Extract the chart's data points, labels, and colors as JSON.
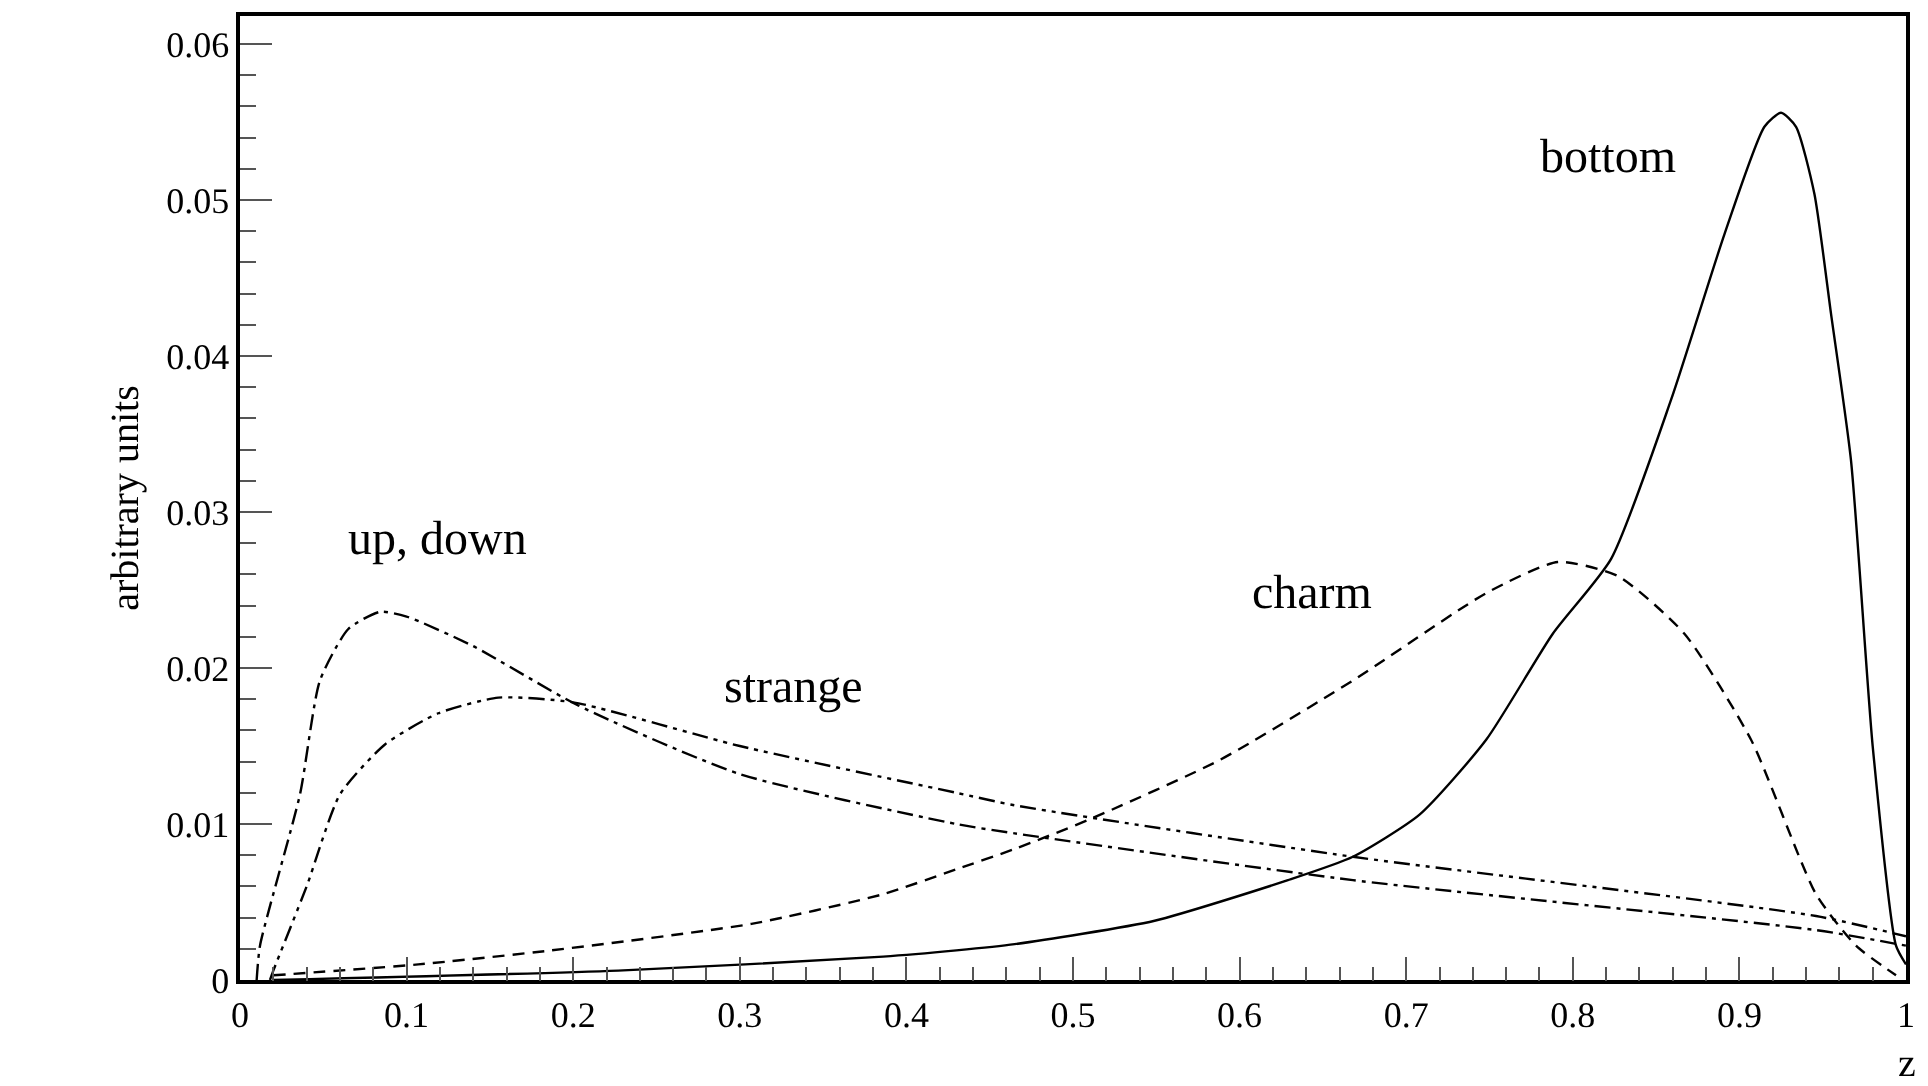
{
  "chart_data": {
    "type": "line",
    "xlabel": "z",
    "ylabel": "arbitrary units",
    "xlim": [
      0,
      1
    ],
    "ylim": [
      0,
      0.0618
    ],
    "xticks": [
      0,
      0.1,
      0.2,
      0.3,
      0.4,
      0.5,
      0.6,
      0.7,
      0.8,
      0.9,
      1
    ],
    "yticks": [
      0,
      0.01,
      0.02,
      0.03,
      0.04,
      0.05,
      0.06
    ],
    "marker": "none",
    "series": [
      {
        "name": "up, down",
        "color": "#000000",
        "line_style": "dashdot",
        "x": [
          0.01,
          0.012,
          0.036,
          0.048,
          0.065,
          0.084,
          0.1,
          0.14,
          0.203,
          0.3,
          0.43,
          0.465,
          0.668,
          0.946,
          1
        ],
        "values": [
          0,
          0.0022,
          0.0119,
          0.0192,
          0.0225,
          0.0236,
          0.0233,
          0.0214,
          0.0176,
          0.0132,
          0.01,
          0.0094,
          0.0064,
          0.0032,
          0.0022
        ]
      },
      {
        "name": "strange",
        "color": "#000000",
        "line_style": "dashdotdot",
        "x": [
          0.018,
          0.02,
          0.04,
          0.06,
          0.087,
          0.119,
          0.155,
          0.2,
          0.3,
          0.43,
          0.465,
          0.668,
          0.946,
          1
        ],
        "values": [
          0,
          0.0006,
          0.006,
          0.0119,
          0.0151,
          0.0171,
          0.0181,
          0.0178,
          0.015,
          0.012,
          0.0112,
          0.0079,
          0.0041,
          0.0028
        ]
      },
      {
        "name": "charm",
        "color": "#000000",
        "line_style": "dashed",
        "x": [
          0.02,
          0.107,
          0.187,
          0.307,
          0.386,
          0.43,
          0.465,
          0.51,
          0.588,
          0.668,
          0.748,
          0.791,
          0.827,
          0.867,
          0.907,
          0.946,
          0.97,
          0.994
        ],
        "values": [
          0.0003,
          0.001,
          0.0019,
          0.0036,
          0.0055,
          0.0071,
          0.0084,
          0.0103,
          0.0141,
          0.0192,
          0.0248,
          0.0268,
          0.0259,
          0.0222,
          0.0154,
          0.0055,
          0.0022,
          0.0003
        ]
      },
      {
        "name": "bottom",
        "color": "#000000",
        "line_style": "solid",
        "x": [
          0.02,
          0.227,
          0.386,
          0.43,
          0.465,
          0.549,
          0.629,
          0.668,
          0.708,
          0.748,
          0.788,
          0.823,
          0.859,
          0.891,
          0.915,
          0.925,
          0.934,
          0.945,
          0.955,
          0.967,
          0.98,
          0.994,
          1
        ],
        "values": [
          0,
          0.0006,
          0.0015,
          0.0019,
          0.0023,
          0.0038,
          0.0064,
          0.0079,
          0.0106,
          0.0154,
          0.0222,
          0.027,
          0.0372,
          0.0478,
          0.0547,
          0.0556,
          0.0547,
          0.0504,
          0.0427,
          0.0333,
          0.015,
          0.0022,
          0.001
        ]
      }
    ]
  }
}
